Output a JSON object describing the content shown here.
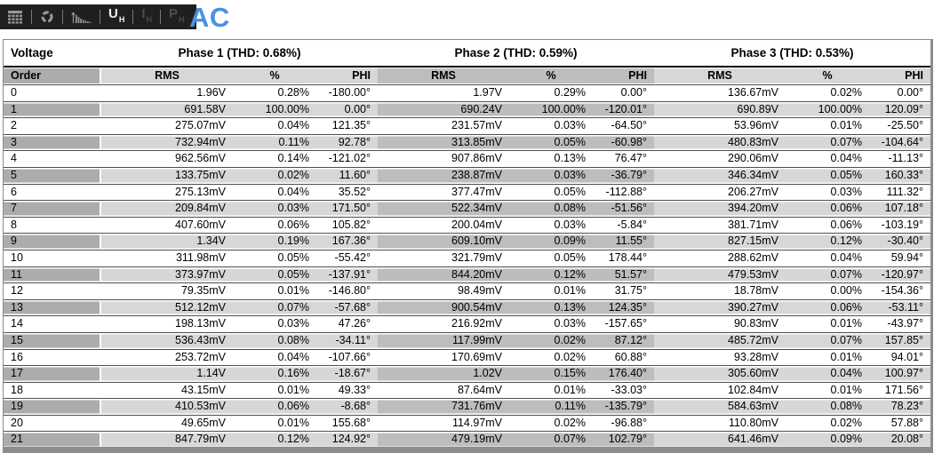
{
  "toolbar": {
    "mode_label": "AC",
    "icons": [
      "table-icon",
      "refresh-icon",
      "spectrum-icon"
    ],
    "buttons": [
      {
        "label": "U",
        "sub": "H",
        "active": true
      },
      {
        "label": "I",
        "sub": "H",
        "active": false
      },
      {
        "label": "P",
        "sub": "H",
        "active": false
      }
    ]
  },
  "table": {
    "corner_label": "Voltage",
    "order_label": "Order",
    "phases": [
      {
        "name": "Phase 1",
        "thd": "0.68%",
        "title": "Phase 1 (THD: 0.68%)"
      },
      {
        "name": "Phase 2",
        "thd": "0.59%",
        "title": "Phase 2 (THD: 0.59%)"
      },
      {
        "name": "Phase 3",
        "thd": "0.53%",
        "title": "Phase 3 (THD: 0.53%)"
      }
    ],
    "columns": [
      "RMS",
      "%",
      "PHI"
    ],
    "rows": [
      {
        "order": "0",
        "cells": [
          "1.96V",
          "0.28%",
          "-180.00°",
          "1.97V",
          "0.29%",
          "0.00°",
          "136.67mV",
          "0.02%",
          "0.00°"
        ]
      },
      {
        "order": "1",
        "cells": [
          "691.58V",
          "100.00%",
          "0.00°",
          "690.24V",
          "100.00%",
          "-120.01°",
          "690.89V",
          "100.00%",
          "120.09°"
        ]
      },
      {
        "order": "2",
        "cells": [
          "275.07mV",
          "0.04%",
          "121.35°",
          "231.57mV",
          "0.03%",
          "-64.50°",
          "53.96mV",
          "0.01%",
          "-25.50°"
        ]
      },
      {
        "order": "3",
        "cells": [
          "732.94mV",
          "0.11%",
          "92.78°",
          "313.85mV",
          "0.05%",
          "-60.98°",
          "480.83mV",
          "0.07%",
          "-104.64°"
        ]
      },
      {
        "order": "4",
        "cells": [
          "962.56mV",
          "0.14%",
          "-121.02°",
          "907.86mV",
          "0.13%",
          "76.47°",
          "290.06mV",
          "0.04%",
          "-11.13°"
        ]
      },
      {
        "order": "5",
        "cells": [
          "133.75mV",
          "0.02%",
          "11.60°",
          "238.87mV",
          "0.03%",
          "-36.79°",
          "346.34mV",
          "0.05%",
          "160.33°"
        ]
      },
      {
        "order": "6",
        "cells": [
          "275.13mV",
          "0.04%",
          "35.52°",
          "377.47mV",
          "0.05%",
          "-112.88°",
          "206.27mV",
          "0.03%",
          "111.32°"
        ]
      },
      {
        "order": "7",
        "cells": [
          "209.84mV",
          "0.03%",
          "171.50°",
          "522.34mV",
          "0.08%",
          "-51.56°",
          "394.20mV",
          "0.06%",
          "107.18°"
        ]
      },
      {
        "order": "8",
        "cells": [
          "407.60mV",
          "0.06%",
          "105.82°",
          "200.04mV",
          "0.03%",
          "-5.84°",
          "381.71mV",
          "0.06%",
          "-103.19°"
        ]
      },
      {
        "order": "9",
        "cells": [
          "1.34V",
          "0.19%",
          "167.36°",
          "609.10mV",
          "0.09%",
          "11.55°",
          "827.15mV",
          "0.12%",
          "-30.40°"
        ]
      },
      {
        "order": "10",
        "cells": [
          "311.98mV",
          "0.05%",
          "-55.42°",
          "321.79mV",
          "0.05%",
          "178.44°",
          "288.62mV",
          "0.04%",
          "59.94°"
        ]
      },
      {
        "order": "11",
        "cells": [
          "373.97mV",
          "0.05%",
          "-137.91°",
          "844.20mV",
          "0.12%",
          "51.57°",
          "479.53mV",
          "0.07%",
          "-120.97°"
        ]
      },
      {
        "order": "12",
        "cells": [
          "79.35mV",
          "0.01%",
          "-146.80°",
          "98.49mV",
          "0.01%",
          "31.75°",
          "18.78mV",
          "0.00%",
          "-154.36°"
        ]
      },
      {
        "order": "13",
        "cells": [
          "512.12mV",
          "0.07%",
          "-57.68°",
          "900.54mV",
          "0.13%",
          "124.35°",
          "390.27mV",
          "0.06%",
          "-53.11°"
        ]
      },
      {
        "order": "14",
        "cells": [
          "198.13mV",
          "0.03%",
          "47.26°",
          "216.92mV",
          "0.03%",
          "-157.65°",
          "90.83mV",
          "0.01%",
          "-43.97°"
        ]
      },
      {
        "order": "15",
        "cells": [
          "536.43mV",
          "0.08%",
          "-34.11°",
          "117.99mV",
          "0.02%",
          "87.12°",
          "485.72mV",
          "0.07%",
          "157.85°"
        ]
      },
      {
        "order": "16",
        "cells": [
          "253.72mV",
          "0.04%",
          "-107.66°",
          "170.69mV",
          "0.02%",
          "60.88°",
          "93.28mV",
          "0.01%",
          "94.01°"
        ]
      },
      {
        "order": "17",
        "cells": [
          "1.14V",
          "0.16%",
          "-18.67°",
          "1.02V",
          "0.15%",
          "176.40°",
          "305.60mV",
          "0.04%",
          "100.97°"
        ]
      },
      {
        "order": "18",
        "cells": [
          "43.15mV",
          "0.01%",
          "49.33°",
          "87.64mV",
          "0.01%",
          "-33.03°",
          "102.84mV",
          "0.01%",
          "171.56°"
        ]
      },
      {
        "order": "19",
        "cells": [
          "410.53mV",
          "0.06%",
          "-8.68°",
          "731.76mV",
          "0.11%",
          "-135.79°",
          "584.63mV",
          "0.08%",
          "78.23°"
        ]
      },
      {
        "order": "20",
        "cells": [
          "49.65mV",
          "0.01%",
          "155.68°",
          "114.97mV",
          "0.02%",
          "-96.88°",
          "110.80mV",
          "0.02%",
          "57.88°"
        ]
      },
      {
        "order": "21",
        "cells": [
          "847.79mV",
          "0.12%",
          "124.92°",
          "479.19mV",
          "0.07%",
          "102.79°",
          "641.46mV",
          "0.09%",
          "20.08°"
        ]
      }
    ]
  },
  "colors": {
    "accent_blue": "#4a90e2",
    "toolbar_bg": "#1f1f1f",
    "toolbar_icon": "#979797",
    "toolbar_dim": "#4d4d4d",
    "toolbar_active": "#f2f2f2",
    "shade_dark": "#acacac",
    "shade_mid": "#bdbdbd",
    "shade_light": "#d7d7d7",
    "row_border": "#4f4f4f",
    "frame": "#8c8c8c"
  }
}
